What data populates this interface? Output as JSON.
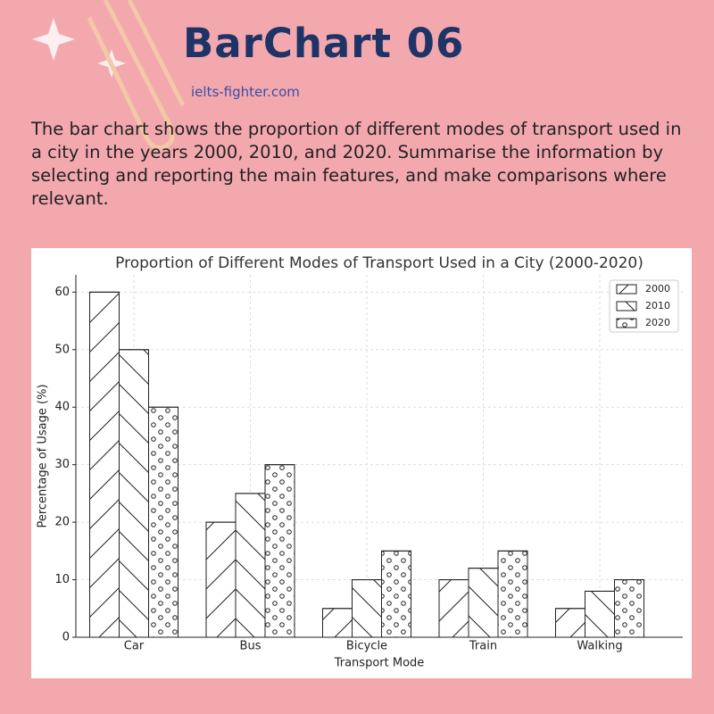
{
  "header": {
    "title": "BarChart 06",
    "site": "ielts-fighter.com",
    "prompt": "The bar chart shows the proportion of different modes of transport used in a city in the years 2000, 2010, and 2020. Summarise the information by selecting and reporting the main features, and make comparisons where relevant."
  },
  "chart_data": {
    "type": "bar",
    "title": "Proportion of Different Modes of Transport Used in a City (2000-2020)",
    "x_label": "Transport Mode",
    "y_label": "Percentage of Usage (%)",
    "categories": [
      "Car",
      "Bus",
      "Bicycle",
      "Train",
      "Walking"
    ],
    "series": [
      {
        "name": "2000",
        "color": "#ffffff",
        "hatch": "/",
        "values": [
          60,
          20,
          5,
          10,
          5
        ]
      },
      {
        "name": "2010",
        "color": "#ffffff",
        "hatch": "\\",
        "values": [
          50,
          25,
          10,
          12,
          8
        ]
      },
      {
        "name": "2020",
        "color": "#ffffff",
        "hatch": "o",
        "values": [
          40,
          30,
          15,
          15,
          10
        ]
      }
    ],
    "ylim": [
      0,
      63
    ],
    "yticks": [
      0,
      10,
      20,
      30,
      40,
      50,
      60
    ],
    "grid": true,
    "legend": "upper right"
  }
}
